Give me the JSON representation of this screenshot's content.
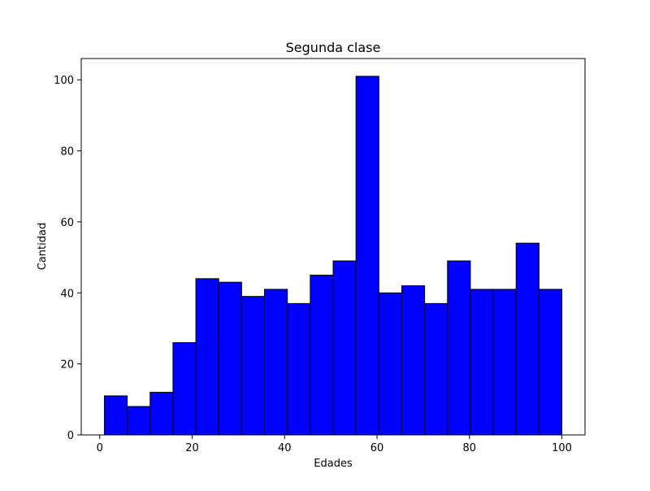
{
  "chart_data": {
    "type": "bar",
    "title": "Segunda clase",
    "xlabel": "Edades",
    "ylabel": "Cantidad",
    "xlim": [
      -4,
      105
    ],
    "ylim": [
      0,
      106
    ],
    "xticks": [
      0,
      20,
      40,
      60,
      80,
      100
    ],
    "yticks": [
      0,
      20,
      40,
      60,
      80,
      100
    ],
    "grid": false,
    "bar_color": "#0000ff",
    "edge_color": "#000000",
    "bins": [
      {
        "x0": 1.0,
        "x1": 5.95,
        "value": 11
      },
      {
        "x0": 5.95,
        "x1": 10.9,
        "value": 8
      },
      {
        "x0": 10.9,
        "x1": 15.85,
        "value": 12
      },
      {
        "x0": 15.85,
        "x1": 20.8,
        "value": 26
      },
      {
        "x0": 20.8,
        "x1": 25.75,
        "value": 44
      },
      {
        "x0": 25.75,
        "x1": 30.7,
        "value": 43
      },
      {
        "x0": 30.7,
        "x1": 35.65,
        "value": 39
      },
      {
        "x0": 35.65,
        "x1": 40.6,
        "value": 41
      },
      {
        "x0": 40.6,
        "x1": 45.55,
        "value": 37
      },
      {
        "x0": 45.55,
        "x1": 50.5,
        "value": 45
      },
      {
        "x0": 50.5,
        "x1": 55.45,
        "value": 49
      },
      {
        "x0": 55.45,
        "x1": 60.4,
        "value": 101
      },
      {
        "x0": 60.4,
        "x1": 65.35,
        "value": 40
      },
      {
        "x0": 65.35,
        "x1": 70.3,
        "value": 42
      },
      {
        "x0": 70.3,
        "x1": 75.25,
        "value": 37
      },
      {
        "x0": 75.25,
        "x1": 80.2,
        "value": 49
      },
      {
        "x0": 80.2,
        "x1": 85.15,
        "value": 41
      },
      {
        "x0": 85.15,
        "x1": 90.1,
        "value": 41
      },
      {
        "x0": 90.1,
        "x1": 95.05,
        "value": 54
      },
      {
        "x0": 95.05,
        "x1": 100.0,
        "value": 41
      }
    ]
  }
}
